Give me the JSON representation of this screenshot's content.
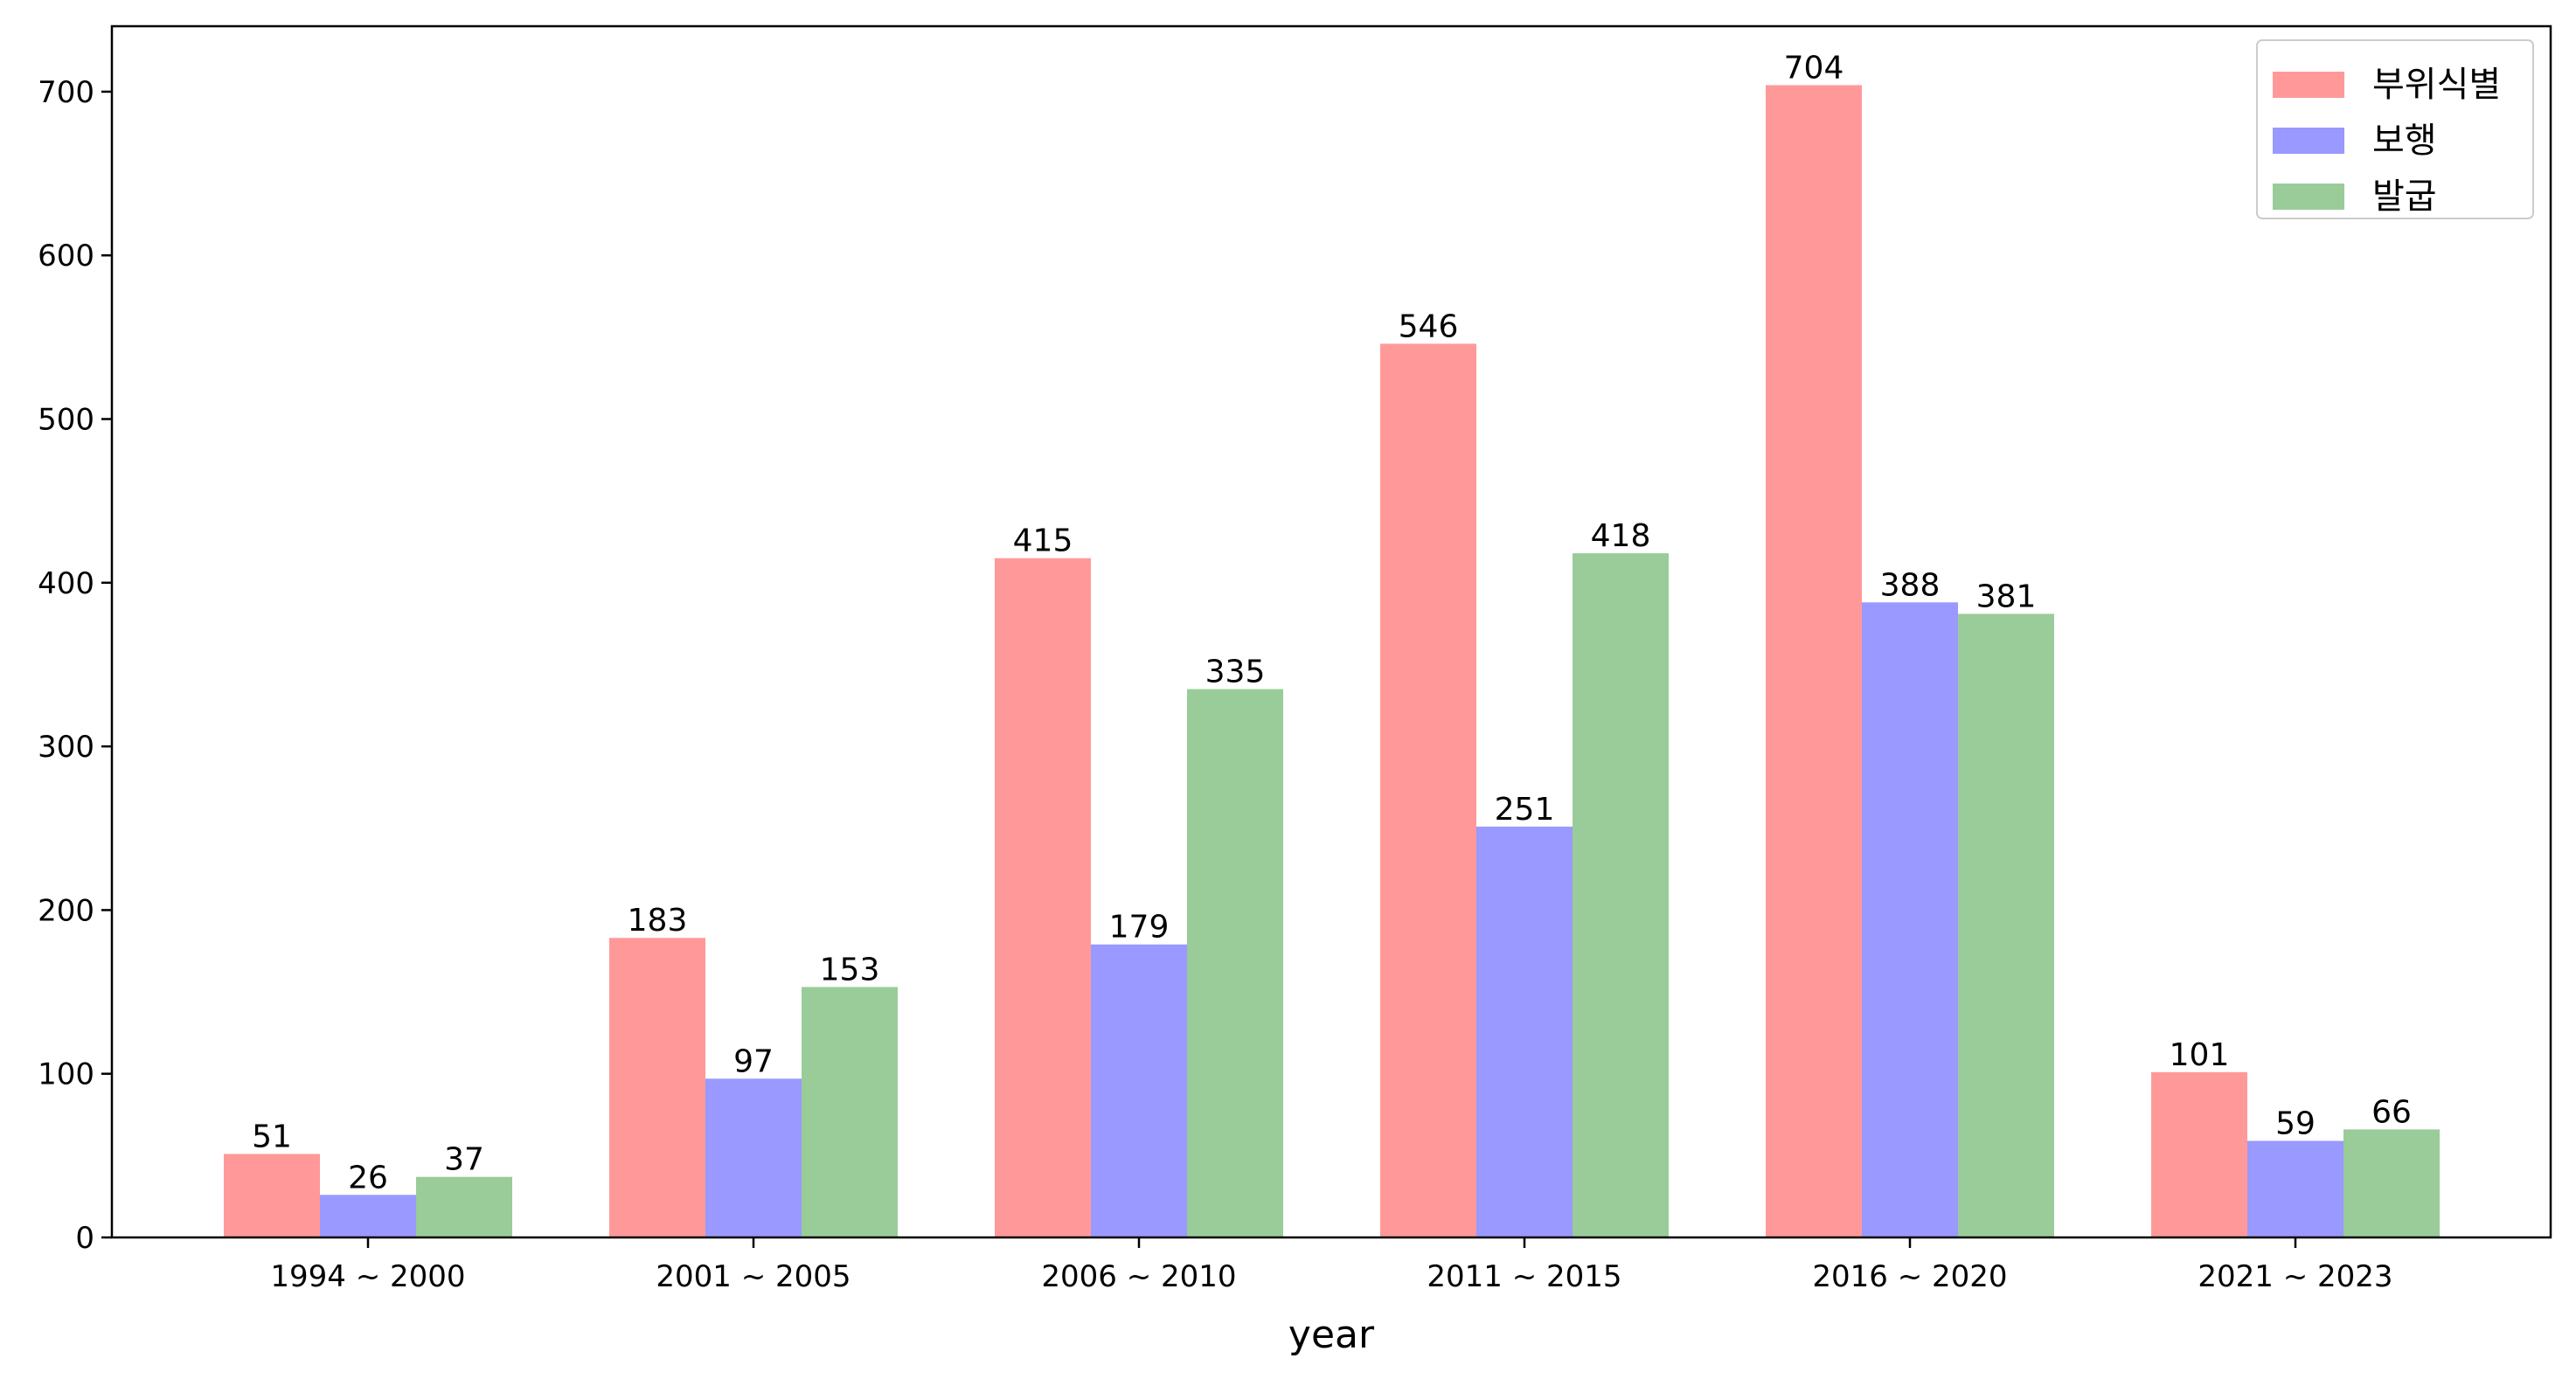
{
  "chart_data": {
    "type": "bar",
    "title": "",
    "xlabel": "year",
    "ylabel": "",
    "ylim": [
      0,
      740
    ],
    "yticks": [
      0,
      100,
      200,
      300,
      400,
      500,
      600,
      700
    ],
    "categories": [
      "1994 ~ 2000",
      "2001 ~ 2005",
      "2006 ~ 2010",
      "2011 ~ 2015",
      "2016 ~ 2020",
      "2021 ~ 2023"
    ],
    "series": [
      {
        "name": "부위식별",
        "color": "#ff9999",
        "values": [
          51,
          183,
          415,
          546,
          704,
          101
        ]
      },
      {
        "name": "보행",
        "color": "#9999ff",
        "values": [
          26,
          97,
          179,
          251,
          388,
          59
        ]
      },
      {
        "name": "발굽",
        "color": "#99cc99",
        "values": [
          37,
          153,
          335,
          418,
          381,
          66
        ]
      }
    ],
    "legend_position": "top-right",
    "grid": false,
    "data_labels": true
  }
}
